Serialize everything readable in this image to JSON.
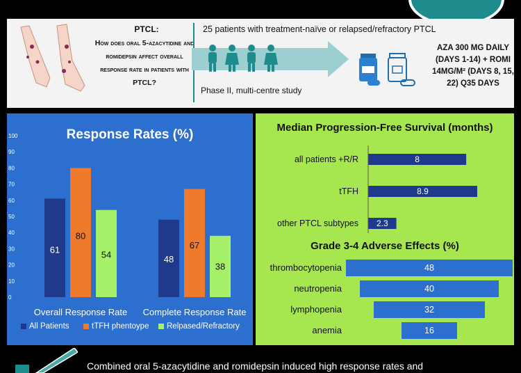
{
  "header": {
    "question_title": "PTCL:",
    "question_text": "How does oral 5-azacytidine and romidepsin affect overall response rate in patients with PTCL?",
    "study_population": "25 patients with treatment-naïve or relapsed/refractory PTCL",
    "study_design": "Phase II, multi-centre study",
    "dose_regimen": "AZA 300 MG DAILY (DAYS 1-14) + ROMI 14MG/M² (DAYS 8, 15, 22) Q35 DAYS"
  },
  "footer": {
    "conclusion_text": "Combined oral 5-azacytidine and romidepsin induced high response rates and"
  },
  "colors": {
    "all_patients": "#1f3a8a",
    "tfh": "#f07a2c",
    "rr": "#a6f06a",
    "panel_blue": "#2d6fcf",
    "panel_green": "#a6e64e",
    "teal": "#1e8c8c",
    "hbar_dark": "#1f3a8a",
    "hbar_blue": "#2d6fcf"
  },
  "chart_data": [
    {
      "type": "bar",
      "title": "Response Rates (%)",
      "categories": [
        "Overall Response Rate",
        "Complete Response Rate"
      ],
      "series": [
        {
          "name": "All Patients",
          "values": [
            61,
            48
          ]
        },
        {
          "name": "tTFH phentoype",
          "values": [
            80,
            67
          ]
        },
        {
          "name": "Relpased/Refractory",
          "values": [
            54,
            38
          ]
        }
      ],
      "ylim": [
        0,
        100
      ],
      "yticks": [
        "0",
        "10",
        "20",
        "30",
        "40",
        "50",
        "60",
        "70",
        "80",
        "90",
        "100"
      ],
      "legend": "bottom"
    },
    {
      "type": "bar",
      "orientation": "horizontal",
      "title": "Median Progression-Free Survival (months)",
      "categories": [
        "all patients +R/R",
        "tTFH",
        "other PTCL subtypes"
      ],
      "values": [
        8,
        8.9,
        2.3
      ]
    },
    {
      "type": "bar",
      "orientation": "horizontal",
      "title": "Grade 3-4 Adverse Effects (%)",
      "categories": [
        "thrombocytopenia",
        "neutropenia",
        "lymphopenia",
        "anemia"
      ],
      "values": [
        48,
        40,
        32,
        16
      ]
    }
  ]
}
